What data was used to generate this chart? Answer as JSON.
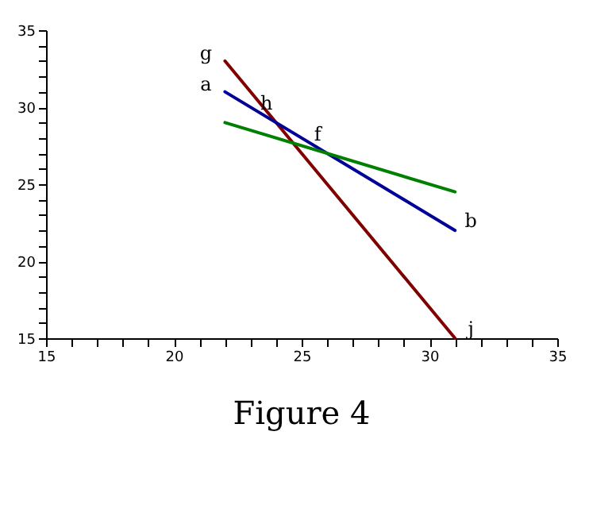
{
  "chart_data": {
    "type": "line",
    "title": "Figure 4",
    "xlim": [
      15,
      35
    ],
    "ylim": [
      15,
      35
    ],
    "xticks": [
      15,
      {
        "value": 16,
        "label": null
      },
      {
        "value": 17,
        "label": null
      },
      {
        "value": 18,
        "label": null
      },
      {
        "value": 19,
        "label": null
      },
      20,
      {
        "value": 21,
        "label": null
      },
      {
        "value": 22,
        "label": null
      },
      {
        "value": 23,
        "label": null
      },
      {
        "value": 24,
        "label": null
      },
      25,
      {
        "value": 26,
        "label": null
      },
      {
        "value": 27,
        "label": null
      },
      {
        "value": 28,
        "label": null
      },
      {
        "value": 29,
        "label": null
      },
      30,
      {
        "value": 31,
        "label": null
      },
      {
        "value": 32,
        "label": null
      },
      {
        "value": 33,
        "label": null
      },
      {
        "value": 34,
        "label": null
      },
      35
    ],
    "yticks": [
      15,
      {
        "value": 16,
        "label": null
      },
      {
        "value": 17,
        "label": null
      },
      {
        "value": 18,
        "label": null
      },
      {
        "value": 19,
        "label": null
      },
      20,
      {
        "value": 21,
        "label": null
      },
      {
        "value": 22,
        "label": null
      },
      {
        "value": 23,
        "label": null
      },
      {
        "value": 24,
        "label": null
      },
      25,
      {
        "value": 26,
        "label": null
      },
      {
        "value": 27,
        "label": null
      },
      {
        "value": 28,
        "label": null
      },
      {
        "value": 29,
        "label": null
      },
      30,
      {
        "value": 31,
        "label": null
      },
      {
        "value": 32,
        "label": null
      },
      {
        "value": 33,
        "label": null
      },
      {
        "value": 34,
        "label": null
      },
      35
    ],
    "x": [
      22,
      31
    ],
    "series": [
      {
        "color": "#800000",
        "values": [
          33,
          15
        ]
      },
      {
        "color": "#000099",
        "values": [
          31,
          22
        ]
      },
      {
        "color": "#008000",
        "values": [
          29,
          24.5
        ]
      }
    ],
    "annotations": [
      {
        "text": "g",
        "x": 22,
        "y": 33
      },
      {
        "text": "a",
        "x": 22,
        "y": 31
      },
      {
        "text": "h",
        "x": 24,
        "y": 29
      },
      {
        "text": "f",
        "x": 26,
        "y": 27
      },
      {
        "text": "b",
        "x": 31,
        "y": 22
      },
      {
        "text": "j",
        "x": 31,
        "y": 15
      }
    ],
    "grid": false,
    "legend": false,
    "marker": "none",
    "line_style": "solid"
  }
}
